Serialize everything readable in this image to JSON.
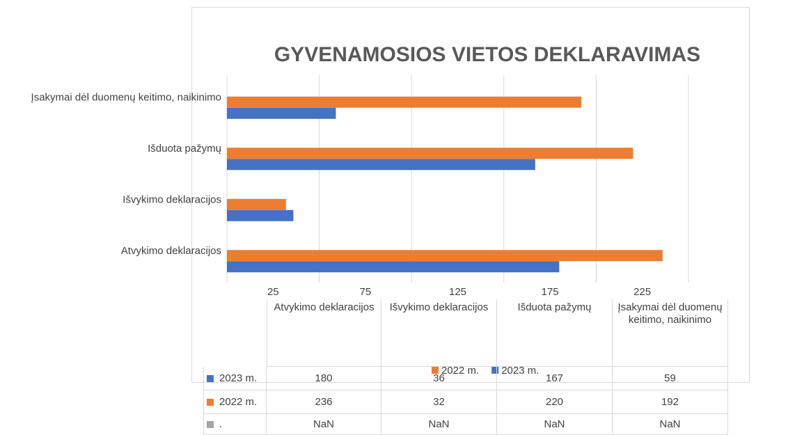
{
  "chart_data": {
    "type": "bar",
    "orientation": "horizontal",
    "title": "GYVENAMOSIOS VIETOS DEKLARAVIMAS",
    "categories": [
      "Atvykimo deklaracijos",
      "Išvykimo deklaracijos",
      "Išduota pažymų",
      "Įsakymai dėl duomenų keitimo, naikinimo"
    ],
    "series": [
      {
        "name": "2023 m.",
        "color": "#4472c4",
        "values": [
          180,
          36,
          167,
          59
        ]
      },
      {
        "name": "2022 m.",
        "color": "#ed7d31",
        "values": [
          236,
          32,
          220,
          192
        ]
      },
      {
        "name": ".",
        "color": "#a5a5a5",
        "values": [
          null,
          null,
          null,
          null
        ],
        "value_labels": [
          "NaN",
          "NaN",
          "NaN",
          "NaN"
        ]
      }
    ],
    "xlim": [
      0,
      250
    ],
    "xticks": [
      25,
      75,
      125,
      175,
      225
    ],
    "xgrid": [
      0,
      50,
      100,
      150,
      200,
      250
    ],
    "grid": true,
    "legend": "bottom",
    "data_table": true
  }
}
